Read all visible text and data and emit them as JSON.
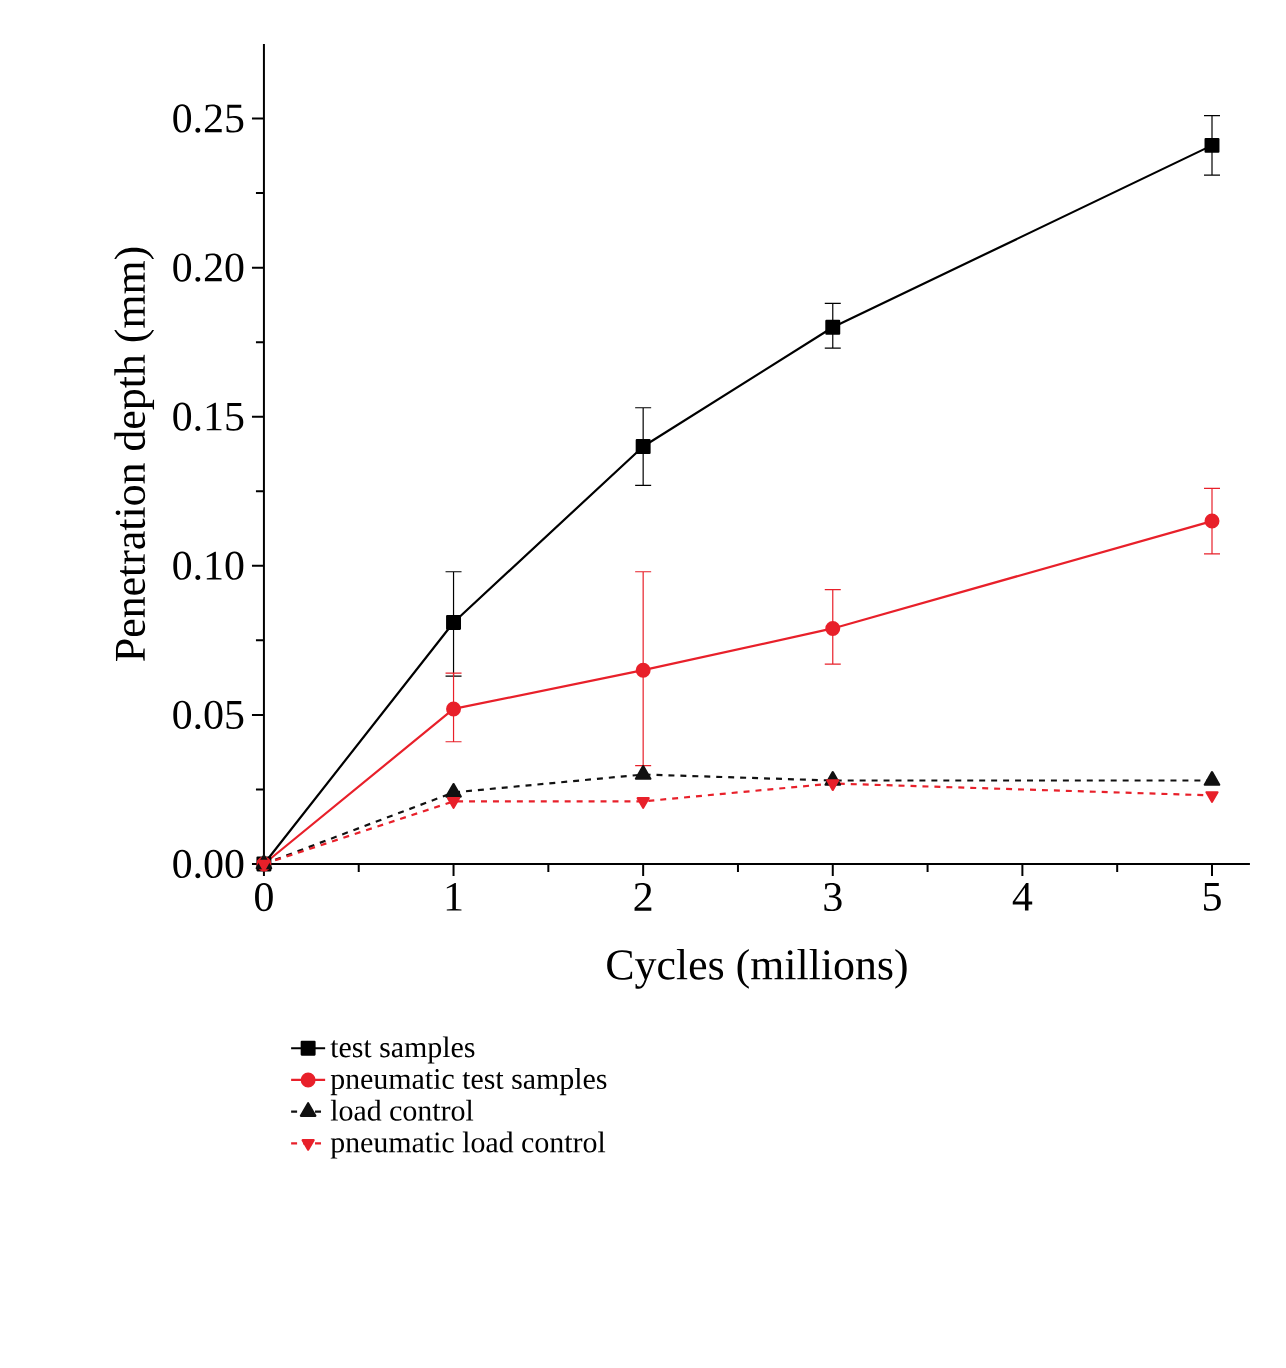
{
  "chart_data": {
    "type": "line",
    "xlabel": "Cycles (millions)",
    "ylabel": "Penetration depth (mm)",
    "xlim": [
      0,
      5.2
    ],
    "ylim": [
      0,
      0.275
    ],
    "xticks": [
      0,
      1,
      2,
      3,
      4,
      5
    ],
    "yticks": [
      {
        "value": 0,
        "label": "0.00"
      },
      {
        "value": 0.05,
        "label": "0.05"
      },
      {
        "value": 0.1,
        "label": "0.10"
      },
      {
        "value": 0.15,
        "label": "0.15"
      },
      {
        "value": 0.2,
        "label": "0.20"
      },
      {
        "value": 0.25,
        "label": "0.25"
      }
    ],
    "grid": false,
    "legend": "bottom",
    "series": [
      {
        "name": "test samples",
        "color": "#000000",
        "marker": "square",
        "line_style": "solid",
        "x": [
          0,
          1,
          2,
          3,
          5
        ],
        "values": [
          0,
          0.081,
          0.14,
          0.18,
          0.241
        ],
        "errors": [
          null,
          [
            0.063,
            0.098
          ],
          [
            0.127,
            0.153
          ],
          [
            0.173,
            0.188
          ],
          [
            0.231,
            0.251
          ]
        ]
      },
      {
        "name": "pneumatic test samples",
        "color": "#e8202a",
        "marker": "circle",
        "line_style": "solid",
        "x": [
          0,
          1,
          2,
          3,
          5
        ],
        "values": [
          0,
          0.052,
          0.065,
          0.079,
          0.115
        ],
        "errors": [
          null,
          [
            0.041,
            0.064
          ],
          [
            0.033,
            0.098
          ],
          [
            0.067,
            0.092
          ],
          [
            0.104,
            0.126
          ]
        ]
      },
      {
        "name": "load control",
        "color": "#111111",
        "marker": "triangle",
        "line_style": "dashed",
        "x": [
          0,
          1,
          2,
          3,
          5
        ],
        "values": [
          0,
          0.024,
          0.03,
          0.028,
          0.028
        ]
      },
      {
        "name": "pneumatic load control",
        "color": "#e8202a",
        "marker": "triangle-down",
        "line_style": "dashed",
        "x": [
          0,
          1,
          2,
          3,
          5
        ],
        "values": [
          0,
          0.021,
          0.021,
          0.027,
          0.023
        ]
      }
    ]
  }
}
